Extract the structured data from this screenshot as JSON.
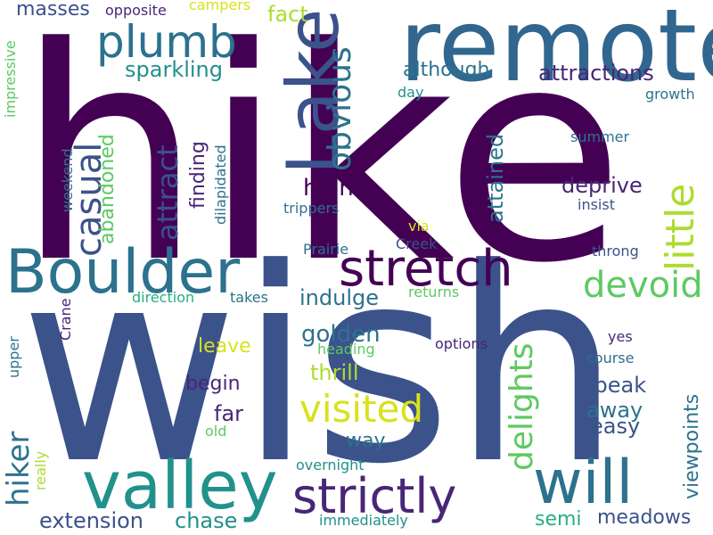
{
  "palette": {
    "d1": "#440154",
    "d2": "#482677",
    "d3": "#3b528b",
    "d4": "#2c728e",
    "d5": "#21918c",
    "d6": "#28ae80",
    "d7": "#5ec962",
    "d8": "#addc30",
    "d9": "#d8e219"
  },
  "words": {
    "hike": "hike",
    "wish": "wish",
    "remote": "remote",
    "lake": "Lake",
    "boulder": "Boulder",
    "valley": "valley",
    "stretch": "stretch",
    "strictly": "strictly",
    "will": "will",
    "plumb": "plumb",
    "visited": "visited",
    "casual": "casual",
    "devoid": "devoid",
    "little": "little",
    "obvious": "obvious",
    "delights": "delights",
    "hiker": "hiker",
    "attract": "attract",
    "sparkling": "sparkling",
    "masses": "masses",
    "opposite": "opposite",
    "campers": "campers",
    "fact": "fact",
    "although": "although",
    "attractions": "attractions",
    "day": "day",
    "growth": "growth",
    "impressive": "impressive",
    "abandoned": "abandoned",
    "finding": "finding",
    "high": "high",
    "attained": "attained",
    "deprive": "deprive",
    "summer": "summer",
    "weekend": "weekend",
    "dilapidated": "dilapidated",
    "trippers": "trippers",
    "insist": "insist",
    "via": "via",
    "prairie": "Prairie",
    "creek": "Creek",
    "throng": "throng",
    "indulge": "indulge",
    "direction": "direction",
    "takes": "takes",
    "returns": "returns",
    "golden": "golden",
    "heading": "heading",
    "options": "options",
    "yes": "yes",
    "crane": "Crane",
    "upper": "upper",
    "leave": "leave",
    "thrill": "thrill",
    "course": "course",
    "begin": "begin",
    "speak": "speak",
    "far": "far",
    "away": "away",
    "easy": "easy",
    "viewpoints": "viewpoints",
    "way": "way",
    "old": "old",
    "really": "really",
    "overnight": "overnight",
    "extension": "extension",
    "chase": "chase",
    "semi": "semi",
    "meadows": "meadows",
    "immediately": "immediately"
  }
}
